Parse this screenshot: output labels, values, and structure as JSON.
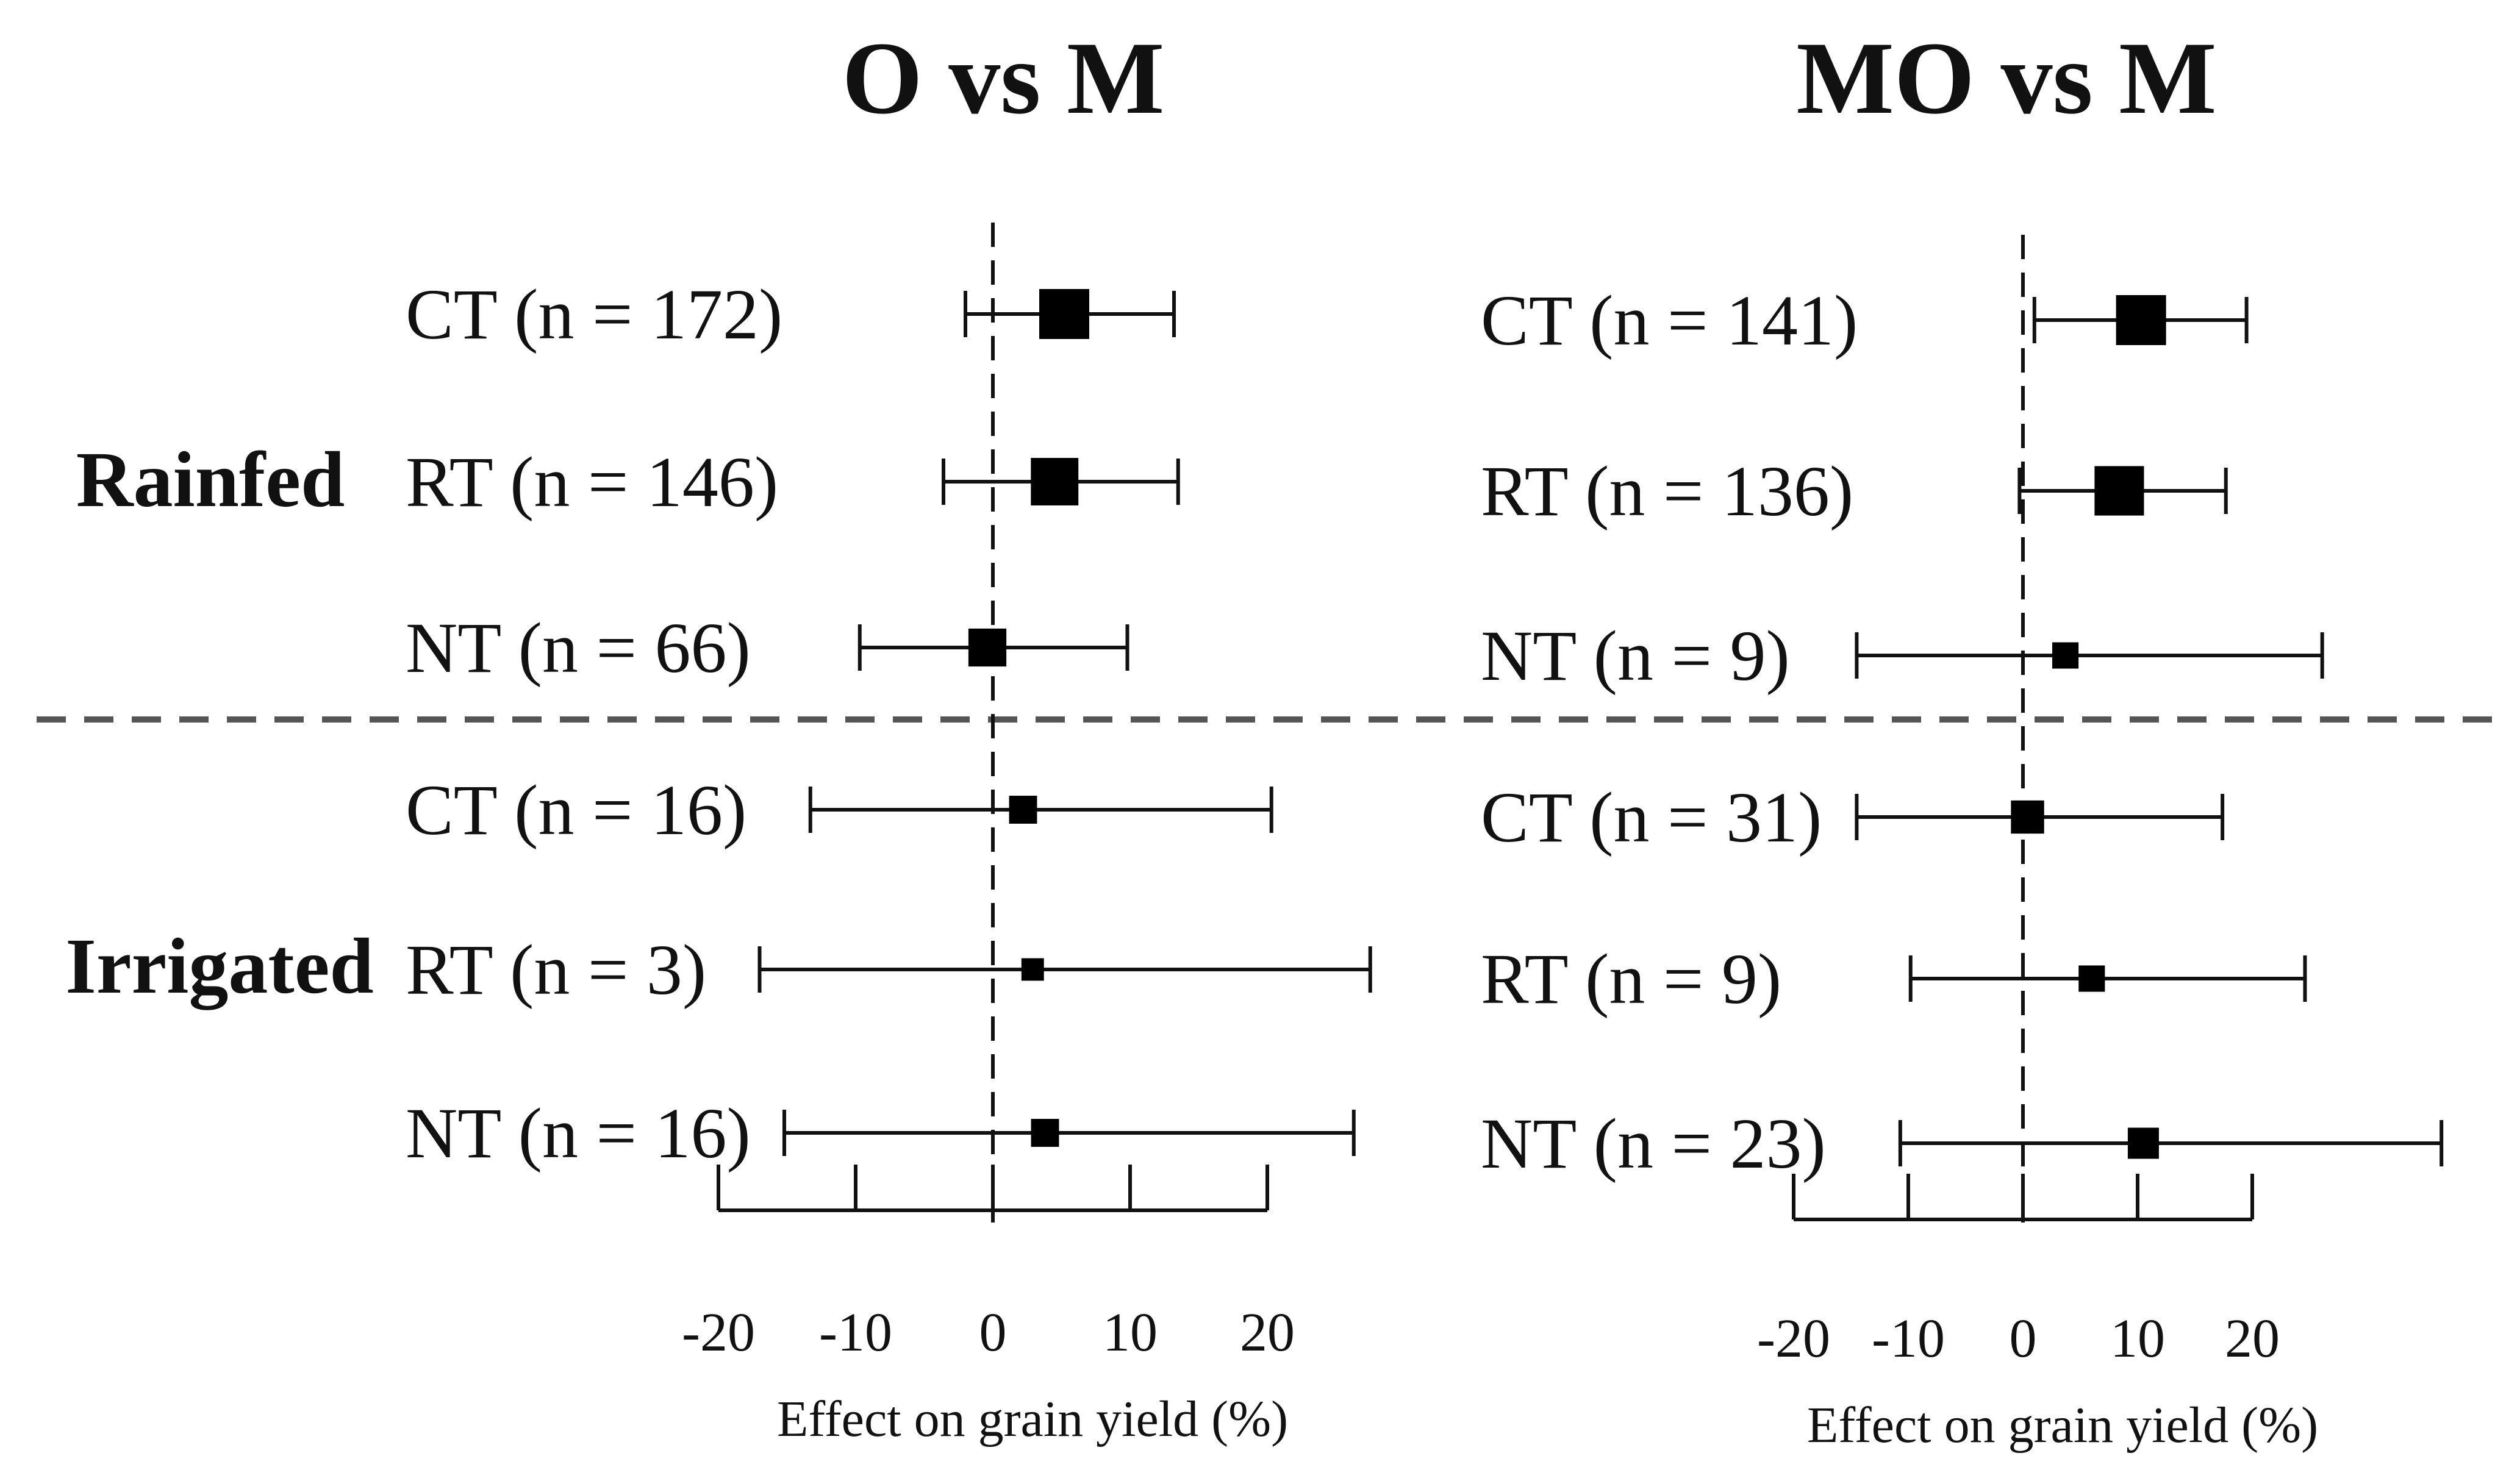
{
  "chart_data": [
    {
      "type": "forest",
      "title": "O vs M",
      "xlabel": "Effect on grain yield (%)",
      "xlim": [
        -20,
        20
      ],
      "xticks": [
        -20,
        -10,
        0,
        10,
        20
      ],
      "reference_line": 0,
      "groups": [
        "Rainfed",
        "Irrigated"
      ],
      "rows": [
        {
          "label": "CT (n = 172)",
          "group": "Rainfed",
          "n": 172,
          "estimate": 5.2,
          "ci_low": -2.0,
          "ci_high": 13.2
        },
        {
          "label": "RT (n = 146)",
          "group": "Rainfed",
          "n": 146,
          "estimate": 4.5,
          "ci_low": -3.6,
          "ci_high": 13.5
        },
        {
          "label": "NT (n = 66)",
          "group": "Rainfed",
          "n": 66,
          "estimate": -0.4,
          "ci_low": -9.7,
          "ci_high": 9.8
        },
        {
          "label": "CT (n = 16)",
          "group": "Irrigated",
          "n": 16,
          "estimate": 2.2,
          "ci_low": -13.3,
          "ci_high": 20.3
        },
        {
          "label": "RT (n = 3)",
          "group": "Irrigated",
          "n": 3,
          "estimate": 2.9,
          "ci_low": -17.0,
          "ci_high": 27.5
        },
        {
          "label": "NT (n = 16)",
          "group": "Irrigated",
          "n": 16,
          "estimate": 3.8,
          "ci_low": -15.2,
          "ci_high": 26.3
        }
      ]
    },
    {
      "type": "forest",
      "title": "MO vs M",
      "xlabel": "Effect on grain yield (%)",
      "xlim": [
        -20,
        20
      ],
      "xticks": [
        -20,
        -10,
        0,
        10,
        20
      ],
      "reference_line": 0,
      "groups": [
        "Rainfed",
        "Irrigated"
      ],
      "rows": [
        {
          "label": "CT (n = 141)",
          "group": "Rainfed",
          "n": 141,
          "estimate": 10.3,
          "ci_low": 1.0,
          "ci_high": 19.5
        },
        {
          "label": "RT (n = 136)",
          "group": "Rainfed",
          "n": 136,
          "estimate": 8.4,
          "ci_low": -0.3,
          "ci_high": 17.7
        },
        {
          "label": "NT (n = 9)",
          "group": "Rainfed",
          "n": 9,
          "estimate": 3.7,
          "ci_low": -14.5,
          "ci_high": 26.1
        },
        {
          "label": "CT (n = 31)",
          "group": "Irrigated",
          "n": 31,
          "estimate": 0.4,
          "ci_low": -14.5,
          "ci_high": 17.4
        },
        {
          "label": "RT (n = 9)",
          "group": "Irrigated",
          "n": 9,
          "estimate": 6.0,
          "ci_low": -9.8,
          "ci_high": 24.6
        },
        {
          "label": "NT (n = 23)",
          "group": "Irrigated",
          "n": 23,
          "estimate": 10.5,
          "ci_low": -10.7,
          "ci_high": 36.5
        }
      ]
    }
  ]
}
